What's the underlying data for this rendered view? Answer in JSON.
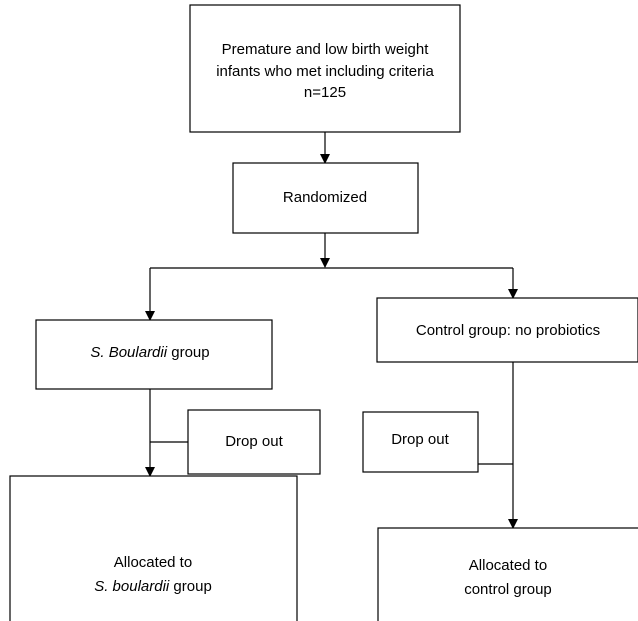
{
  "nodes": [
    {
      "lines": [
        "Premature and low birth weight",
        "infants who met including criteria",
        "n=125"
      ]
    },
    {
      "lines": [
        "Randomized"
      ]
    },
    {
      "lines": [
        "Control group: no probiotics"
      ]
    },
    {
      "italic": "S. Boulardii",
      "text": " group"
    },
    {
      "lines": [
        "Drop out"
      ]
    },
    {
      "lines": [
        "Drop out"
      ]
    },
    {
      "lines": [
        "Allocated to"
      ],
      "italic": "S. boulardii",
      "text": " group"
    },
    {
      "lines": [
        "Allocated to",
        "control group"
      ]
    }
  ]
}
